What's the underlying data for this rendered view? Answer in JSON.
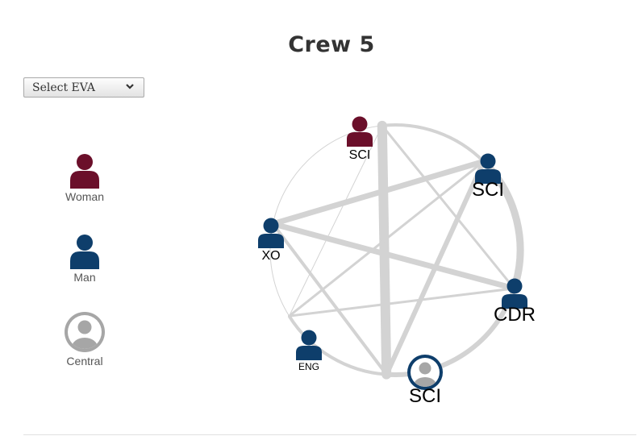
{
  "title": "Crew 5",
  "eva_select": {
    "selected": "Select EVA",
    "icon": "chevron-down-icon"
  },
  "legend": [
    {
      "key": "woman",
      "label": "Woman",
      "color": "#6b0f2a",
      "icon": "person-icon"
    },
    {
      "key": "man",
      "label": "Man",
      "color": "#0e3e6b",
      "icon": "person-icon"
    },
    {
      "key": "central",
      "label": "Central",
      "color": "#a6a6a6",
      "icon": "central-person-icon"
    }
  ],
  "network": {
    "nodes": [
      {
        "id": "sci-top",
        "label": "SCI",
        "gender": "woman",
        "central": false
      },
      {
        "id": "sci-right",
        "label": "SCI",
        "gender": "man",
        "central": false
      },
      {
        "id": "cdr",
        "label": "CDR",
        "gender": "man",
        "central": false
      },
      {
        "id": "sci-bottom",
        "label": "SCI",
        "gender": "man",
        "central": true
      },
      {
        "id": "eng",
        "label": "ENG",
        "gender": "man",
        "central": false
      },
      {
        "id": "xo",
        "label": "XO",
        "gender": "man",
        "central": false
      }
    ],
    "edges": [
      {
        "from": "sci-top",
        "to": "sci-right",
        "weight": 4
      },
      {
        "from": "sci-top",
        "to": "sci-bottom",
        "weight": 12
      },
      {
        "from": "sci-top",
        "to": "cdr",
        "weight": 3
      },
      {
        "from": "sci-top",
        "to": "xo",
        "weight": 1
      },
      {
        "from": "sci-top",
        "to": "eng",
        "weight": 1
      },
      {
        "from": "sci-right",
        "to": "cdr",
        "weight": 9
      },
      {
        "from": "sci-right",
        "to": "xo",
        "weight": 7
      },
      {
        "from": "sci-right",
        "to": "sci-bottom",
        "weight": 6
      },
      {
        "from": "sci-right",
        "to": "eng",
        "weight": 3
      },
      {
        "from": "cdr",
        "to": "xo",
        "weight": 7
      },
      {
        "from": "cdr",
        "to": "sci-bottom",
        "weight": 6
      },
      {
        "from": "cdr",
        "to": "eng",
        "weight": 3
      },
      {
        "from": "xo",
        "to": "sci-bottom",
        "weight": 4
      },
      {
        "from": "xo",
        "to": "eng",
        "weight": 1
      },
      {
        "from": "eng",
        "to": "sci-bottom",
        "weight": 4
      }
    ],
    "colors": {
      "edge": "#d3d3d3"
    }
  }
}
